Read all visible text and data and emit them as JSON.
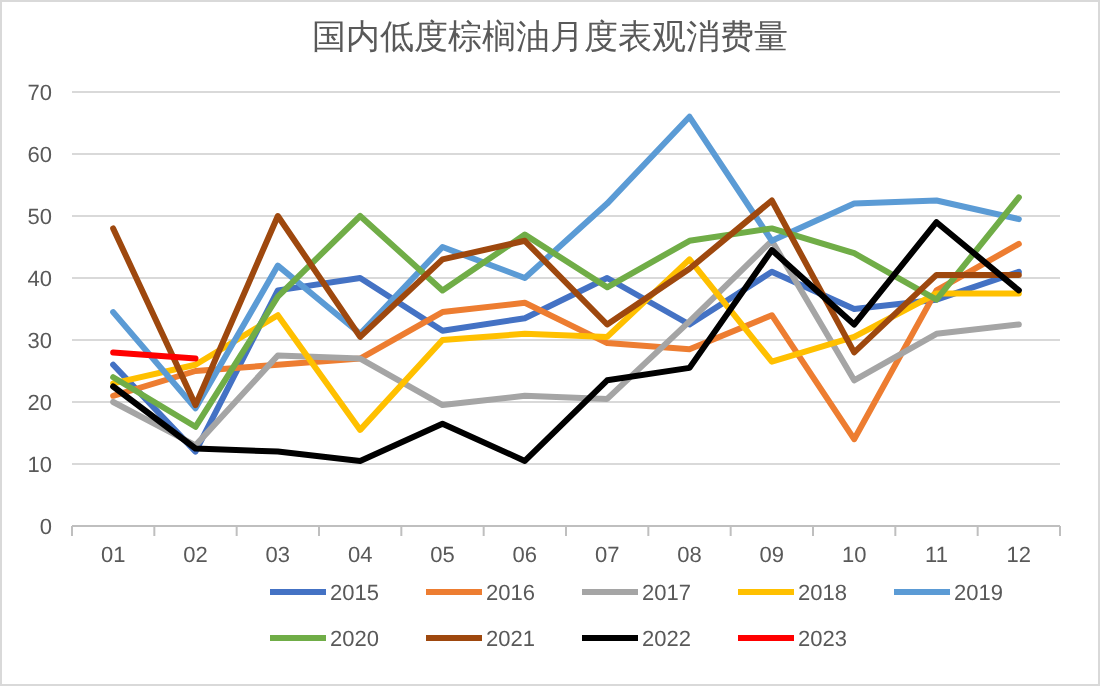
{
  "chart_data": {
    "type": "line",
    "title": "国内低度棕榈油月度表观消费量",
    "categories": [
      "01",
      "02",
      "03",
      "04",
      "05",
      "06",
      "07",
      "08",
      "09",
      "10",
      "11",
      "12"
    ],
    "ylim": [
      0,
      70
    ],
    "yticks": [
      0,
      10,
      20,
      30,
      40,
      50,
      60,
      70
    ],
    "grid": "y",
    "legend": "bottom",
    "marker": "none",
    "line_style": "solid",
    "series": [
      {
        "name": "2015",
        "color": "#4472c4",
        "values": [
          26,
          12,
          38,
          40,
          31.5,
          33.5,
          40,
          32.5,
          41,
          35,
          36.5,
          41
        ]
      },
      {
        "name": "2016",
        "color": "#ed7d31",
        "values": [
          21,
          25,
          26,
          27,
          34.5,
          36,
          29.5,
          28.5,
          34,
          14,
          38,
          45.5
        ]
      },
      {
        "name": "2017",
        "color": "#a5a5a5",
        "values": [
          20,
          13,
          27.5,
          27,
          19.5,
          21,
          20.5,
          33,
          46,
          23.5,
          31,
          32.5
        ]
      },
      {
        "name": "2018",
        "color": "#ffc000",
        "values": [
          23,
          26,
          34,
          15.5,
          30,
          31,
          30.5,
          43,
          26.5,
          30.5,
          37.5,
          37.5
        ]
      },
      {
        "name": "2019",
        "color": "#5b9bd5",
        "values": [
          34.5,
          19,
          42,
          31,
          45,
          40,
          52,
          66,
          46,
          52,
          52.5,
          49.5
        ]
      },
      {
        "name": "2020",
        "color": "#70ad47",
        "values": [
          24,
          16,
          37,
          50,
          38,
          47,
          38.5,
          46,
          48,
          44,
          36.5,
          53
        ]
      },
      {
        "name": "2021",
        "color": "#9e480e",
        "values": [
          48,
          19.5,
          50,
          30.5,
          43,
          46,
          32.5,
          41.5,
          52.5,
          28,
          40.5,
          40.5
        ]
      },
      {
        "name": "2022",
        "color": "#000000",
        "values": [
          22.5,
          12.5,
          12,
          10.5,
          16.5,
          10.5,
          23.5,
          25.5,
          44.5,
          32.5,
          49,
          38
        ]
      },
      {
        "name": "2023",
        "color": "#ff0000",
        "values": [
          28,
          27,
          null,
          null,
          null,
          null,
          null,
          null,
          null,
          null,
          null,
          null
        ]
      }
    ]
  }
}
